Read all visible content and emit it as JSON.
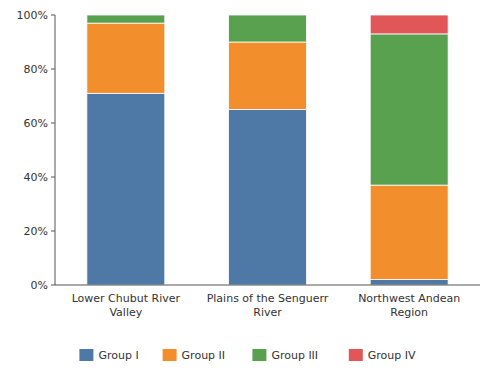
{
  "chart_data": {
    "type": "bar",
    "stacked": true,
    "categories": [
      "Lower Chubut River\nValley",
      "Plains of the Senguerr\nRiver",
      "Northwest Andean\nRegion"
    ],
    "series": [
      {
        "name": "Group I",
        "values": [
          0.71,
          0.65,
          0.02
        ]
      },
      {
        "name": "Group II",
        "values": [
          0.26,
          0.25,
          0.35
        ]
      },
      {
        "name": "Group III",
        "values": [
          0.03,
          0.1,
          0.56
        ]
      },
      {
        "name": "Group IV",
        "values": [
          0.0,
          0.0,
          0.07
        ]
      }
    ],
    "ylim": [
      0,
      1.0
    ],
    "yticks": [
      {
        "value": 0,
        "label": "0%"
      },
      {
        "value": 0.2,
        "label": "20%"
      },
      {
        "value": 0.4,
        "label": "40%"
      },
      {
        "value": 0.6,
        "label": "60%"
      },
      {
        "value": 0.8,
        "label": "80%"
      },
      {
        "value": 1.0,
        "label": "100%"
      }
    ],
    "grid": false,
    "legend": "bottom"
  }
}
